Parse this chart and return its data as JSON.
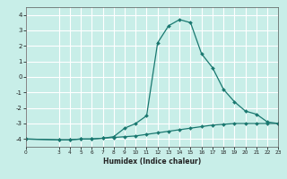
{
  "xlabel": "Humidex (Indice chaleur)",
  "ylabel": "",
  "bg_color": "#c8eee8",
  "grid_color": "#ffffff",
  "line_color": "#1a7870",
  "xlim": [
    0,
    23
  ],
  "ylim": [
    -4.5,
    4.5
  ],
  "yticks": [
    -4,
    -3,
    -2,
    -1,
    0,
    1,
    2,
    3,
    4
  ],
  "xticks": [
    0,
    3,
    4,
    5,
    6,
    7,
    8,
    9,
    10,
    11,
    12,
    13,
    14,
    15,
    16,
    17,
    18,
    19,
    20,
    21,
    22,
    23
  ],
  "curve1_x": [
    0,
    3,
    4,
    5,
    6,
    7,
    8,
    9,
    10,
    11,
    12,
    13,
    14,
    15,
    16,
    17,
    18,
    19,
    20,
    21,
    22,
    23
  ],
  "curve1_y": [
    -4.0,
    -4.05,
    -4.05,
    -4.0,
    -4.0,
    -3.95,
    -3.85,
    -3.3,
    -3.0,
    -2.5,
    2.2,
    3.3,
    3.7,
    3.5,
    1.5,
    0.6,
    -0.8,
    -1.6,
    -2.2,
    -2.4,
    -2.9,
    -3.0
  ],
  "curve2_x": [
    0,
    3,
    4,
    5,
    6,
    7,
    8,
    9,
    10,
    11,
    12,
    13,
    14,
    15,
    16,
    17,
    18,
    19,
    20,
    21,
    22,
    23
  ],
  "curve2_y": [
    -4.0,
    -4.05,
    -4.05,
    -4.0,
    -4.0,
    -3.95,
    -3.9,
    -3.85,
    -3.8,
    -3.7,
    -3.6,
    -3.5,
    -3.4,
    -3.3,
    -3.2,
    -3.1,
    -3.05,
    -3.0,
    -3.0,
    -3.0,
    -3.0,
    -3.0
  ]
}
